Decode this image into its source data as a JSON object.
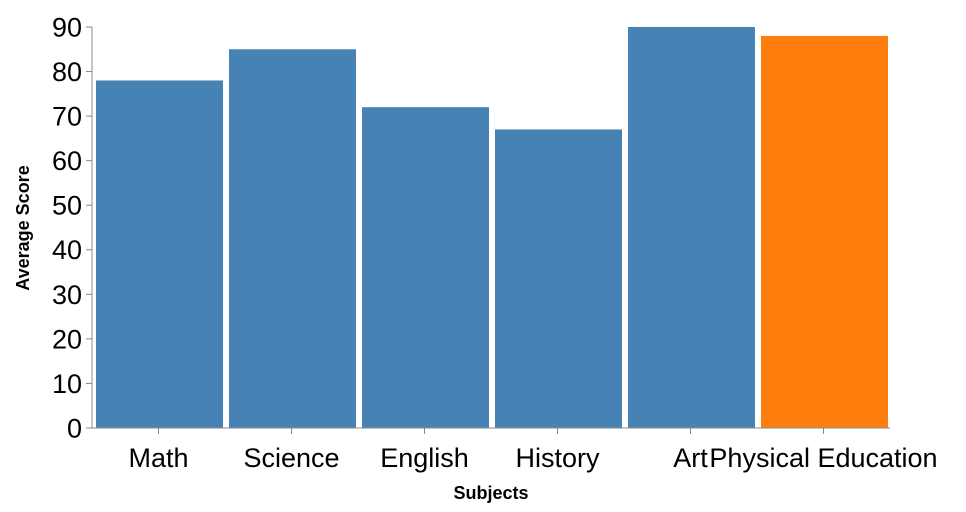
{
  "chart_data": {
    "type": "bar",
    "categories": [
      "Math",
      "Science",
      "English",
      "History",
      "Art",
      "Physical Education"
    ],
    "values": [
      78,
      85,
      72,
      67,
      90,
      88
    ],
    "bar_colors": [
      "#4682b4",
      "#4682b4",
      "#4682b4",
      "#4682b4",
      "#4682b4",
      "#ff7f0e"
    ],
    "xlabel": "Subjects",
    "ylabel": "Average Score",
    "ylim": [
      0,
      90
    ],
    "yticks": [
      0,
      10,
      20,
      30,
      40,
      50,
      60,
      70,
      80,
      90
    ],
    "grid": false,
    "legend": "none"
  }
}
